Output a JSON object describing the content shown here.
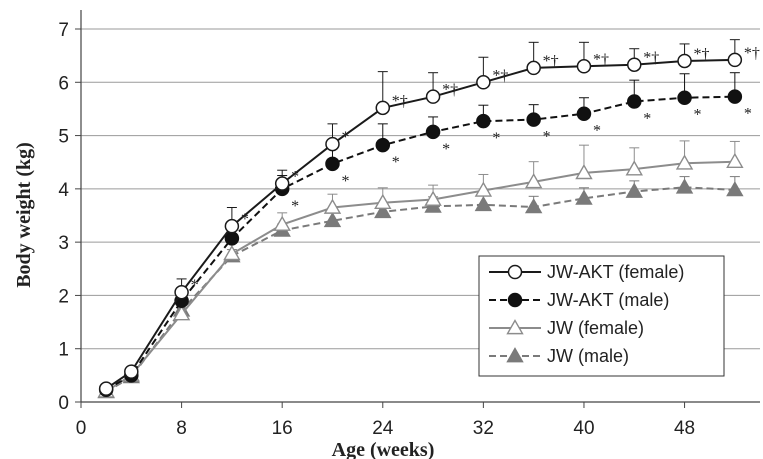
{
  "chart_data": {
    "type": "line",
    "title": "",
    "xlabel": "Age (weeks)",
    "ylabel": "Body weight (kg)",
    "xlim": [
      0,
      54
    ],
    "ylim": [
      0,
      7
    ],
    "xticks": [
      "0",
      "8",
      "16",
      "24",
      "32",
      "40",
      "48"
    ],
    "yticks": [
      "0",
      "1",
      "2",
      "3",
      "4",
      "5",
      "6",
      "7"
    ],
    "grid": "horizontal",
    "legend_position": "bottom-right",
    "x": [
      2,
      4,
      8,
      12,
      16,
      20,
      24,
      28,
      32,
      36,
      40,
      44,
      48,
      52
    ],
    "series": [
      {
        "name": "JW-AKT (female)",
        "values": [
          0.25,
          0.57,
          2.06,
          3.3,
          4.1,
          4.84,
          5.52,
          5.73,
          6.0,
          6.27,
          6.3,
          6.33,
          6.4,
          6.42
        ],
        "errors": [
          0.03,
          0.05,
          0.25,
          0.35,
          0.25,
          0.38,
          0.68,
          0.45,
          0.47,
          0.48,
          0.45,
          0.3,
          0.32,
          0.38
        ],
        "color": "#1a1a1a",
        "line_style": "solid",
        "marker": "open-circle",
        "significance": [
          "",
          "",
          "*",
          "*",
          "*",
          "*",
          "*†",
          "*†",
          "*†",
          "*†",
          "*†",
          "*†",
          "*†",
          "*†"
        ]
      },
      {
        "name": "JW-AKT (male)",
        "values": [
          0.23,
          0.5,
          1.9,
          3.07,
          4.0,
          4.47,
          4.82,
          5.07,
          5.27,
          5.3,
          5.41,
          5.64,
          5.71,
          5.73
        ],
        "errors": [
          0.03,
          0.05,
          0.2,
          0.3,
          0.25,
          0.35,
          0.4,
          0.28,
          0.3,
          0.28,
          0.3,
          0.4,
          0.45,
          0.45
        ],
        "color": "#111111",
        "line_style": "dashed",
        "marker": "filled-circle",
        "significance": [
          "",
          "",
          "",
          "",
          "*",
          "*",
          "*",
          "*",
          "*",
          "*",
          "*",
          "*",
          "*",
          "*"
        ]
      },
      {
        "name": "JW (female)",
        "values": [
          0.2,
          0.5,
          1.65,
          2.78,
          3.33,
          3.65,
          3.74,
          3.8,
          3.97,
          4.13,
          4.3,
          4.37,
          4.48,
          4.51
        ],
        "errors": [
          0.03,
          0.05,
          0.12,
          0.2,
          0.22,
          0.25,
          0.28,
          0.27,
          0.3,
          0.38,
          0.52,
          0.4,
          0.42,
          0.38
        ],
        "color": "#8c8c8c",
        "line_style": "solid",
        "marker": "open-triangle",
        "significance": []
      },
      {
        "name": "JW (male)",
        "values": [
          0.19,
          0.47,
          1.72,
          2.74,
          3.22,
          3.4,
          3.57,
          3.67,
          3.7,
          3.66,
          3.82,
          3.95,
          4.03,
          3.98
        ],
        "errors": [
          0.03,
          0.05,
          0.1,
          0.12,
          0.12,
          0.15,
          0.17,
          0.18,
          0.2,
          0.2,
          0.2,
          0.2,
          0.2,
          0.25
        ],
        "color": "#7a7a7a",
        "line_style": "dashed",
        "marker": "filled-triangle",
        "significance": []
      }
    ]
  }
}
